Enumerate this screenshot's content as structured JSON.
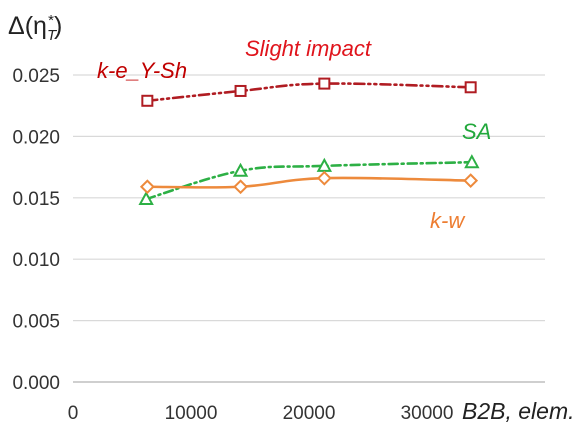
{
  "chart_data": {
    "type": "line",
    "ylabel_base": "Δ(η",
    "ylabel_sub": "T",
    "ylabel_sup": "*",
    "ylabel_close": ")",
    "xlabel": "B2B, elem.",
    "annotation": "Slight impact",
    "xlim": [
      0,
      40000
    ],
    "ylim": [
      0.0,
      0.025
    ],
    "x_ticks": [
      0,
      10000,
      20000,
      30000
    ],
    "y_ticks": [
      0.0,
      0.005,
      0.01,
      0.015,
      0.02,
      0.025
    ],
    "x_tick_labels": [
      "0",
      "10000",
      "20000",
      "30000"
    ],
    "y_tick_labels": [
      "0.000",
      "0.005",
      "0.010",
      "0.015",
      "0.020",
      "0.025"
    ],
    "grid": "horizontal",
    "series": [
      {
        "name": "k-e_Y-Sh",
        "color": "#b01c22",
        "label_color": "#c00000",
        "marker": "square",
        "dash": "dash-dot-dot",
        "x": [
          6300,
          14200,
          21300,
          33700
        ],
        "y": [
          0.0229,
          0.0237,
          0.0243,
          0.024
        ]
      },
      {
        "name": "SA",
        "color": "#2db045",
        "label_color": "#22a83c",
        "marker": "triangle",
        "dash": "dash-dot",
        "x": [
          6200,
          14200,
          21300,
          33800
        ],
        "y": [
          0.0149,
          0.0172,
          0.0176,
          0.0179
        ]
      },
      {
        "name": "k-w",
        "color": "#ed8a3c",
        "label_color": "#ed7d31",
        "marker": "diamond",
        "dash": "solid",
        "x": [
          6300,
          14200,
          21300,
          33700
        ],
        "y": [
          0.0159,
          0.0159,
          0.0166,
          0.0164
        ]
      }
    ]
  }
}
